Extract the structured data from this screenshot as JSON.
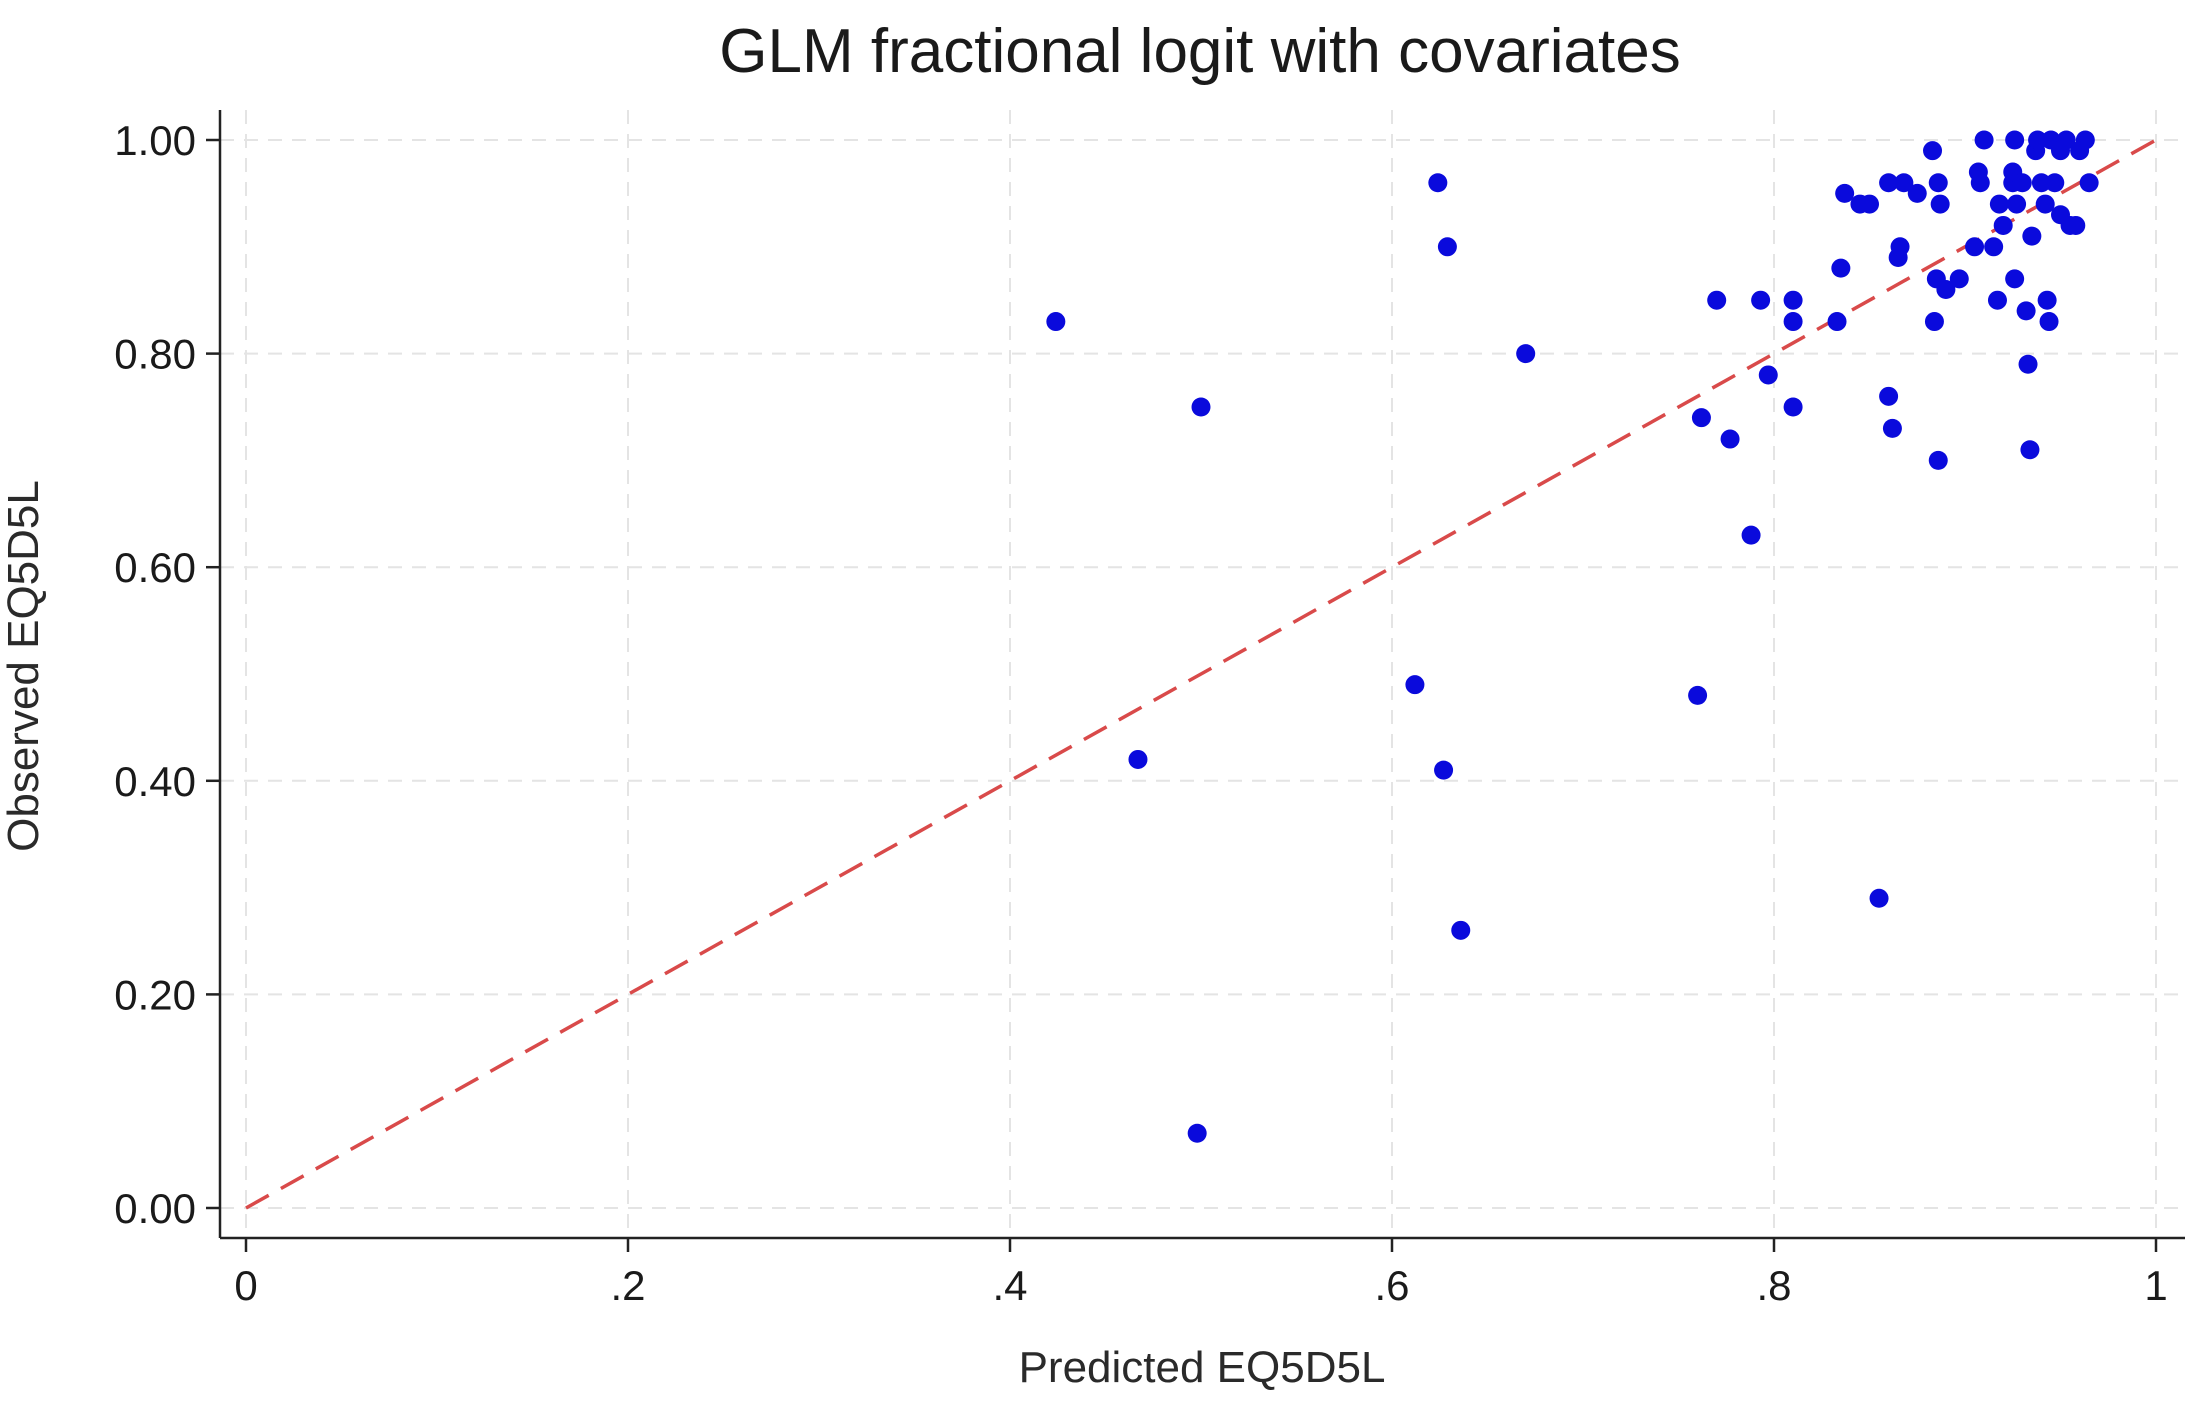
{
  "chart_data": {
    "type": "scatter",
    "title": "GLM fractional logit with covariates",
    "xlabel": "Predicted EQ5D5L",
    "ylabel": "Observed EQ5D5L",
    "xlim": [
      0,
      1
    ],
    "ylim": [
      0,
      1
    ],
    "x_ticks": [
      0,
      0.2,
      0.4,
      0.6,
      0.8,
      1
    ],
    "x_tick_labels": [
      "0",
      ".2",
      ".4",
      ".6",
      ".8",
      "1"
    ],
    "y_ticks": [
      0,
      0.2,
      0.4,
      0.6,
      0.8,
      1
    ],
    "y_tick_labels": [
      "0.00",
      "0.20",
      "0.40",
      "0.60",
      "0.80",
      "1.00"
    ],
    "grid": true,
    "legend": "none",
    "reference_line": {
      "from": [
        0,
        0
      ],
      "to": [
        1,
        1
      ],
      "style": "dashed",
      "color": "#d94a4a"
    },
    "point_color": "#0a0adc",
    "points": [
      [
        0.424,
        0.83
      ],
      [
        0.5,
        0.75
      ],
      [
        0.467,
        0.42
      ],
      [
        0.498,
        0.07
      ],
      [
        0.624,
        0.96
      ],
      [
        0.629,
        0.9
      ],
      [
        0.67,
        0.8
      ],
      [
        0.612,
        0.49
      ],
      [
        0.627,
        0.41
      ],
      [
        0.636,
        0.26
      ],
      [
        0.76,
        0.48
      ],
      [
        0.762,
        0.74
      ],
      [
        0.77,
        0.85
      ],
      [
        0.777,
        0.72
      ],
      [
        0.788,
        0.63
      ],
      [
        0.793,
        0.85
      ],
      [
        0.797,
        0.78
      ],
      [
        0.81,
        0.75
      ],
      [
        0.81,
        0.85
      ],
      [
        0.81,
        0.83
      ],
      [
        0.833,
        0.83
      ],
      [
        0.835,
        0.88
      ],
      [
        0.837,
        0.95
      ],
      [
        0.845,
        0.94
      ],
      [
        0.85,
        0.94
      ],
      [
        0.855,
        0.29
      ],
      [
        0.86,
        0.96
      ],
      [
        0.86,
        0.76
      ],
      [
        0.862,
        0.73
      ],
      [
        0.865,
        0.89
      ],
      [
        0.866,
        0.9
      ],
      [
        0.868,
        0.96
      ],
      [
        0.875,
        0.95
      ],
      [
        0.883,
        0.99
      ],
      [
        0.884,
        0.83
      ],
      [
        0.885,
        0.87
      ],
      [
        0.886,
        0.7
      ],
      [
        0.886,
        0.96
      ],
      [
        0.887,
        0.94
      ],
      [
        0.89,
        0.86
      ],
      [
        0.897,
        0.87
      ],
      [
        0.905,
        0.9
      ],
      [
        0.907,
        0.97
      ],
      [
        0.908,
        0.96
      ],
      [
        0.91,
        1.0
      ],
      [
        0.915,
        0.9
      ],
      [
        0.917,
        0.85
      ],
      [
        0.918,
        0.94
      ],
      [
        0.92,
        0.92
      ],
      [
        0.925,
        0.96
      ],
      [
        0.925,
        0.97
      ],
      [
        0.926,
        1.0
      ],
      [
        0.926,
        0.87
      ],
      [
        0.927,
        0.94
      ],
      [
        0.93,
        0.96
      ],
      [
        0.932,
        0.84
      ],
      [
        0.933,
        0.79
      ],
      [
        0.934,
        0.71
      ],
      [
        0.935,
        0.91
      ],
      [
        0.937,
        0.99
      ],
      [
        0.938,
        1.0
      ],
      [
        0.94,
        0.96
      ],
      [
        0.942,
        0.94
      ],
      [
        0.943,
        0.85
      ],
      [
        0.944,
        0.83
      ],
      [
        0.945,
        1.0
      ],
      [
        0.947,
        0.96
      ],
      [
        0.95,
        0.99
      ],
      [
        0.95,
        0.93
      ],
      [
        0.953,
        1.0
      ],
      [
        0.955,
        0.92
      ],
      [
        0.958,
        0.92
      ],
      [
        0.96,
        0.99
      ],
      [
        0.963,
        1.0
      ],
      [
        0.965,
        0.96
      ]
    ]
  }
}
